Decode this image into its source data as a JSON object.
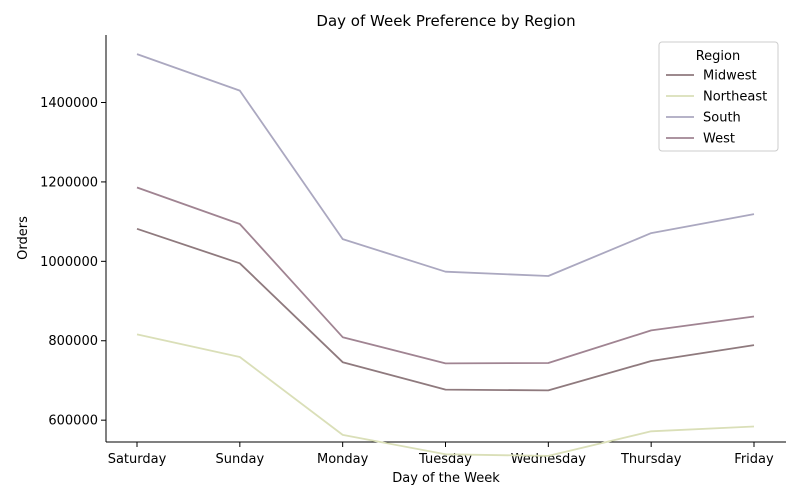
{
  "chart_data": {
    "type": "line",
    "title": "Day of Week Preference by Region",
    "xlabel": "Day of the Week",
    "ylabel": "Orders",
    "categories": [
      "Saturday",
      "Sunday",
      "Monday",
      "Tuesday",
      "Wednesday",
      "Thursday",
      "Friday"
    ],
    "ylim": [
      545000,
      1570000
    ],
    "yticks": [
      600000,
      800000,
      1000000,
      1200000,
      1400000
    ],
    "ytick_labels": [
      "600000",
      "800000",
      "1000000",
      "1200000",
      "1400000"
    ],
    "grid": false,
    "legend": {
      "title": "Region",
      "placement": "top-right"
    },
    "series": [
      {
        "name": "Midwest",
        "color": "#8f7a7e",
        "values": [
          1082000,
          995000,
          746000,
          677000,
          675000,
          749000,
          789000
        ]
      },
      {
        "name": "Northeast",
        "color": "#dadfb8",
        "values": [
          816000,
          759000,
          563000,
          514000,
          510000,
          572000,
          584000
        ]
      },
      {
        "name": "South",
        "color": "#aba8c0",
        "values": [
          1522000,
          1430000,
          1056000,
          974000,
          963000,
          1071000,
          1119000
        ]
      },
      {
        "name": "West",
        "color": "#a08492",
        "values": [
          1186000,
          1094000,
          809000,
          743000,
          744000,
          826000,
          861000
        ]
      }
    ]
  }
}
